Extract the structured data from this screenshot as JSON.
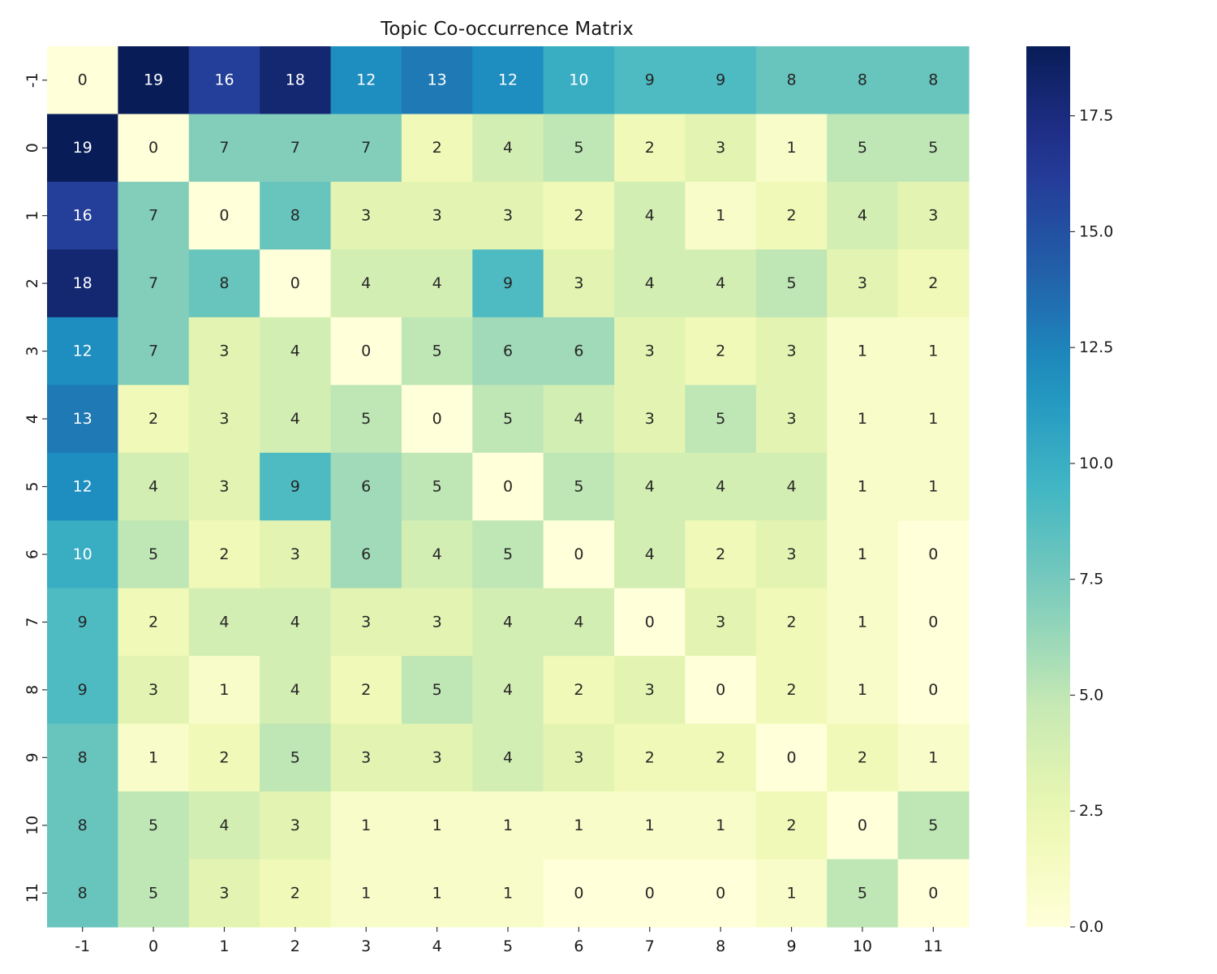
{
  "chart_data": {
    "type": "heatmap",
    "title": "Topic Co-occurrence Matrix",
    "xlabel": "",
    "ylabel": "",
    "x_categories": [
      "-1",
      "0",
      "1",
      "2",
      "3",
      "4",
      "5",
      "6",
      "7",
      "8",
      "9",
      "10",
      "11"
    ],
    "y_categories": [
      "-1",
      "0",
      "1",
      "2",
      "3",
      "4",
      "5",
      "6",
      "7",
      "8",
      "9",
      "10",
      "11"
    ],
    "values": [
      [
        0,
        19,
        16,
        18,
        12,
        13,
        12,
        10,
        9,
        9,
        8,
        8,
        8
      ],
      [
        19,
        0,
        7,
        7,
        7,
        2,
        4,
        5,
        2,
        3,
        1,
        5,
        5
      ],
      [
        16,
        7,
        0,
        8,
        3,
        3,
        3,
        2,
        4,
        1,
        2,
        4,
        3
      ],
      [
        18,
        7,
        8,
        0,
        4,
        4,
        9,
        3,
        4,
        4,
        5,
        3,
        2
      ],
      [
        12,
        7,
        3,
        4,
        0,
        5,
        6,
        6,
        3,
        2,
        3,
        1,
        1
      ],
      [
        13,
        2,
        3,
        4,
        5,
        0,
        5,
        4,
        3,
        5,
        3,
        1,
        1
      ],
      [
        12,
        4,
        3,
        9,
        6,
        5,
        0,
        5,
        4,
        4,
        4,
        1,
        1
      ],
      [
        10,
        5,
        2,
        3,
        6,
        4,
        5,
        0,
        4,
        2,
        3,
        1,
        0
      ],
      [
        9,
        2,
        4,
        4,
        3,
        3,
        4,
        4,
        0,
        3,
        2,
        1,
        0
      ],
      [
        9,
        3,
        1,
        4,
        2,
        5,
        4,
        2,
        3,
        0,
        2,
        1,
        0
      ],
      [
        8,
        1,
        2,
        5,
        3,
        3,
        4,
        3,
        2,
        2,
        0,
        2,
        1
      ],
      [
        8,
        5,
        4,
        3,
        1,
        1,
        1,
        1,
        1,
        1,
        2,
        0,
        5
      ],
      [
        8,
        5,
        3,
        2,
        1,
        1,
        1,
        0,
        0,
        0,
        1,
        5,
        0
      ]
    ],
    "annotate": true,
    "colormap": "YlGnBu",
    "color_range": [
      0,
      19
    ],
    "colorbar": {
      "ticks": [
        0,
        2.5,
        5,
        7.5,
        10,
        12.5,
        15,
        17.5
      ],
      "tick_labels": [
        "0.0",
        "2.5",
        "5.0",
        "7.5",
        "10.0",
        "12.5",
        "15.0",
        "17.5"
      ]
    }
  }
}
